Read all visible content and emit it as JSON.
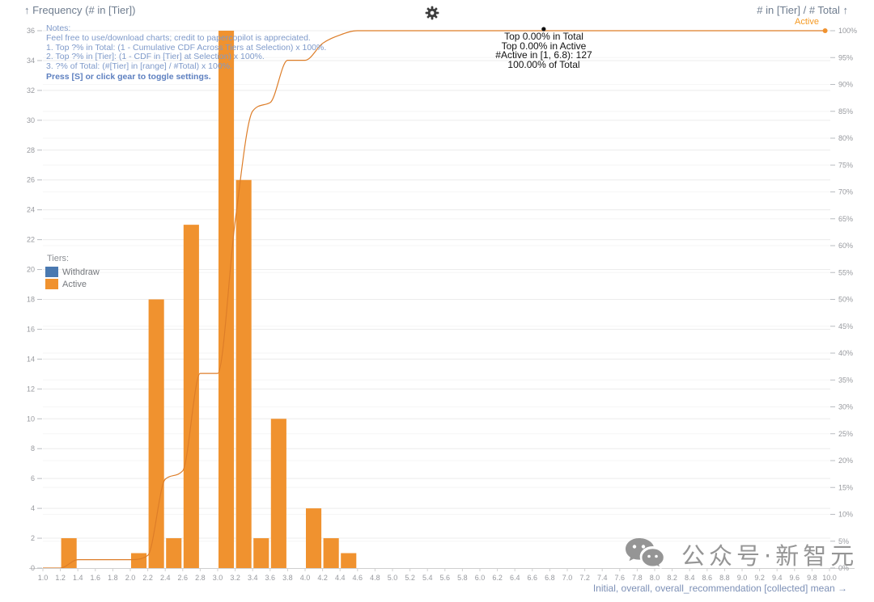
{
  "header": {
    "left_title": "↑ Frequency (# in [Tier])",
    "right_title": "# in [Tier] / # Total ↑",
    "right_series_label": "Active"
  },
  "notes": {
    "lines": [
      "Notes:",
      "Feel free to use/download charts; credit to papercopilot is appreciated.",
      "1. Top ?% in Total: (1 - Cumulative CDF Across Tiers at Selection) x 100%.",
      "2. Top ?% in [Tier]: (1 - CDF in [Tier] at Selection) x 100%.",
      "3. ?% of Total: (#[Tier] in [range] / #Total) x 100%."
    ],
    "bold_line": "Press [S] or click gear to toggle settings."
  },
  "tooltip": {
    "lines": [
      "Top 0.00% in Total",
      "Top 0.00% in Active",
      "#Active in [1, 6.8): 127",
      "100.00% of Total"
    ]
  },
  "legend": {
    "title": "Tiers:",
    "items": [
      {
        "label": "Withdraw",
        "color": "#4a79b0"
      },
      {
        "label": "Active",
        "color": "#f0922f"
      }
    ]
  },
  "x_axis_label": "Initial, overall, overall_recommendation [collected] mean →",
  "watermark": {
    "icon": "wechat-icon",
    "text": "公众号·新智元"
  },
  "colors": {
    "bar": "#f0922f",
    "cdf_line": "#dd7d28",
    "withdraw": "#4a79b0",
    "grid_left": "#ececec",
    "grid_right": "#f6f6f6",
    "axis": "#cfcfcf",
    "tick_text": "#97999e",
    "hover_dot": "#111111"
  },
  "chart_data": {
    "type": "bar",
    "title": "Frequency (# in [Tier])",
    "xlabel": "Initial, overall, overall_recommendation [collected] mean",
    "ylabel_left": "Frequency (# in [Tier])",
    "ylabel_right": "# in [Tier] / # Total",
    "total_count": 127,
    "x_axis": {
      "min": 1.0,
      "max": 10.0,
      "tick_step": 0.2
    },
    "y_left": {
      "min": 0,
      "max": 36,
      "tick_step": 2
    },
    "y_right": {
      "min": 0,
      "max": 100,
      "tick_step": 5,
      "unit": "%"
    },
    "series": [
      {
        "name": "Withdraw",
        "type": "bar",
        "bins": []
      },
      {
        "name": "Active",
        "type": "bar",
        "bin_width": 0.2,
        "bins": [
          {
            "x": 1.2,
            "count": 2
          },
          {
            "x": 2.0,
            "count": 1
          },
          {
            "x": 2.2,
            "count": 18
          },
          {
            "x": 2.4,
            "count": 2
          },
          {
            "x": 2.6,
            "count": 23
          },
          {
            "x": 3.0,
            "count": 36
          },
          {
            "x": 3.2,
            "count": 26
          },
          {
            "x": 3.4,
            "count": 2
          },
          {
            "x": 3.6,
            "count": 10
          },
          {
            "x": 4.0,
            "count": 4
          },
          {
            "x": 4.2,
            "count": 2
          },
          {
            "x": 4.4,
            "count": 1
          }
        ]
      },
      {
        "name": "Active CDF",
        "type": "line",
        "points": [
          [
            1.0,
            0
          ],
          [
            1.2,
            0
          ],
          [
            1.4,
            1.57
          ],
          [
            2.0,
            1.57
          ],
          [
            2.2,
            2.36
          ],
          [
            2.4,
            16.54
          ],
          [
            2.6,
            18.11
          ],
          [
            2.8,
            36.22
          ],
          [
            3.0,
            36.22
          ],
          [
            3.2,
            64.57
          ],
          [
            3.4,
            85.04
          ],
          [
            3.6,
            86.61
          ],
          [
            3.8,
            94.49
          ],
          [
            4.0,
            94.49
          ],
          [
            4.2,
            97.64
          ],
          [
            4.4,
            99.21
          ],
          [
            4.6,
            100
          ],
          [
            9.95,
            100
          ]
        ]
      }
    ],
    "hover_point": {
      "x": 6.73,
      "pct": 100
    },
    "end_point": {
      "x": 9.95,
      "pct": 100
    },
    "legend_position": "middle-left",
    "grid": true
  }
}
